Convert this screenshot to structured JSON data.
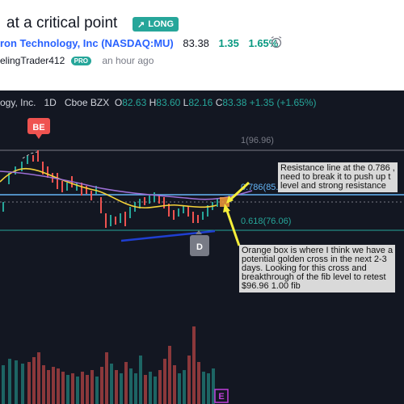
{
  "header": {
    "title": "at a critical point",
    "badge": "LONG",
    "company": "ron Technology, Inc",
    "exchange": "(NASDAQ:MU)",
    "price": "83.38",
    "change": "1.35",
    "change_pct": "1.65%",
    "author": "elingTrader412",
    "author_badge": "PRO",
    "time_ago": "an hour ago"
  },
  "chart": {
    "legend": {
      "name": "ogy, Inc.",
      "interval": "1D",
      "source": "Cboe BZX",
      "o_label": "O",
      "o": "82.63",
      "h_label": "H",
      "h": "83.60",
      "l_label": "L",
      "l": "82.16",
      "c_label": "C",
      "c": "83.38",
      "chg": "+1.35 (+1.65%)"
    },
    "marker_be": "BE",
    "marker_d": "D",
    "marker_e": "E",
    "fib_1": "1(96.96)",
    "fib_786": "0.786(85.",
    "fib_618": "0.618(76.06)",
    "annotation_1": "Resistance line at the 0.786 ,\nneed to break it to push up t\nlevel and strong resistance",
    "annotation_2": "Orange box is where I think we have a\npotential golden cross in the next 2-3\ndays. Looking for this cross and\nbreakthrough of the fib level to retest\n$96.96 1.00 fib",
    "colors": {
      "up": "#26a69a",
      "down": "#ef5350",
      "ma_fast": "#f5d33a",
      "ma_mid": "#9c6fd6",
      "ma_slow": "#1f3fd1",
      "fib_786": "#64b5f6",
      "fib_618": "#26a69a",
      "arrow": "#f5ee3a"
    }
  }
}
